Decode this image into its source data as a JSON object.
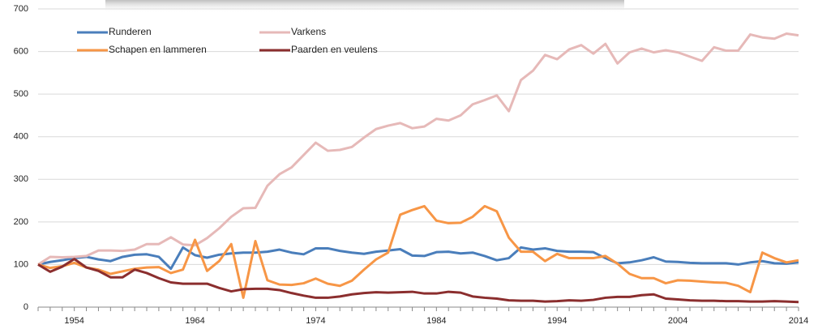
{
  "chart_data": {
    "type": "line",
    "categories": [
      null,
      null,
      null,
      "1954",
      null,
      null,
      null,
      null,
      null,
      null,
      null,
      null,
      null,
      "1964",
      null,
      null,
      null,
      null,
      null,
      null,
      null,
      null,
      null,
      "1974",
      null,
      null,
      null,
      null,
      null,
      null,
      null,
      null,
      null,
      "1984",
      null,
      null,
      null,
      null,
      null,
      null,
      null,
      null,
      null,
      "1994",
      null,
      null,
      null,
      null,
      null,
      null,
      null,
      null,
      null,
      "2004",
      null,
      null,
      null,
      null,
      null,
      null,
      null,
      null,
      null,
      "2014"
    ],
    "series": [
      {
        "name": "Runderen",
        "color": "#4a7ebb",
        "values": [
          100,
          106,
          110,
          115,
          118,
          112,
          108,
          118,
          123,
          124,
          118,
          90,
          140,
          122,
          116,
          123,
          126,
          128,
          128,
          130,
          135,
          128,
          124,
          138,
          138,
          132,
          128,
          125,
          130,
          133,
          136,
          121,
          120,
          129,
          130,
          126,
          128,
          120,
          110,
          115,
          140,
          135,
          138,
          132,
          130,
          130,
          129,
          115,
          103,
          105,
          110,
          117,
          107,
          106,
          104,
          103,
          103,
          103,
          100,
          105,
          108,
          103,
          102,
          105
        ]
      },
      {
        "name": "Varkens",
        "color": "#e6b9b8",
        "values": [
          100,
          118,
          117,
          118,
          120,
          133,
          133,
          132,
          135,
          148,
          148,
          164,
          147,
          145,
          162,
          185,
          212,
          232,
          233,
          285,
          312,
          328,
          357,
          386,
          367,
          369,
          376,
          398,
          418,
          426,
          432,
          420,
          424,
          442,
          438,
          450,
          476,
          486,
          497,
          460,
          533,
          555,
          592,
          582,
          605,
          615,
          595,
          618,
          572,
          598,
          607,
          598,
          603,
          598,
          588,
          578,
          610,
          602,
          602,
          640,
          633,
          630,
          642,
          638
        ]
      },
      {
        "name": "Schapen en lammeren",
        "color": "#f79646",
        "values": [
          100,
          92,
          96,
          104,
          93,
          88,
          78,
          84,
          90,
          93,
          94,
          80,
          88,
          158,
          85,
          108,
          148,
          22,
          155,
          63,
          53,
          52,
          56,
          67,
          55,
          50,
          62,
          88,
          112,
          128,
          217,
          228,
          237,
          203,
          197,
          198,
          212,
          237,
          225,
          163,
          130,
          130,
          108,
          125,
          115,
          115,
          115,
          120,
          102,
          78,
          68,
          68,
          56,
          63,
          62,
          60,
          58,
          57,
          50,
          35,
          128,
          115,
          105,
          110
        ]
      },
      {
        "name": "Paarden en veulens",
        "color": "#8b2e2e",
        "values": [
          100,
          83,
          95,
          113,
          93,
          85,
          70,
          70,
          88,
          80,
          68,
          58,
          55,
          55,
          55,
          45,
          37,
          42,
          43,
          43,
          40,
          33,
          27,
          22,
          22,
          25,
          30,
          33,
          35,
          34,
          35,
          36,
          32,
          32,
          36,
          34,
          25,
          22,
          20,
          16,
          15,
          15,
          13,
          14,
          16,
          15,
          17,
          22,
          24,
          24,
          28,
          30,
          20,
          18,
          16,
          15,
          15,
          14,
          14,
          13,
          13,
          14,
          13,
          12
        ]
      }
    ],
    "ylim": [
      0,
      700
    ],
    "yticks": [
      0,
      100,
      200,
      300,
      400,
      500,
      600,
      700
    ],
    "grid": true,
    "legend": "top-left"
  }
}
